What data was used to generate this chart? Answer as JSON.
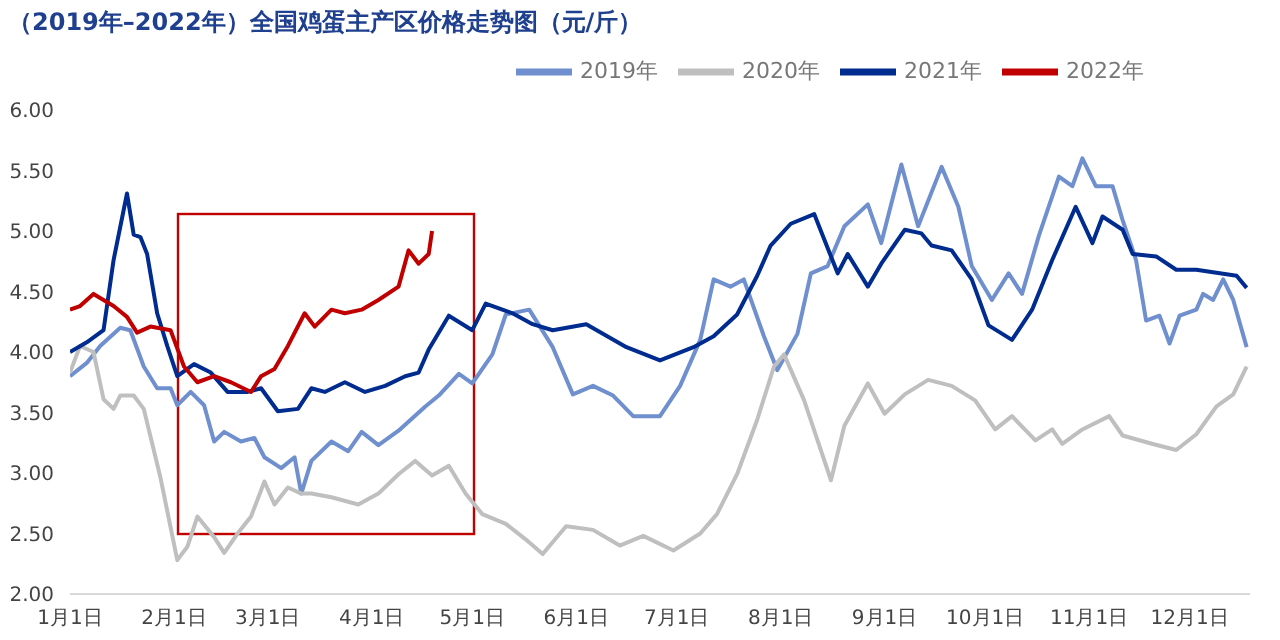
{
  "chart_data": {
    "type": "line",
    "title": "（2019年–2022年）全国鸡蛋主产区价格走势图（元/斤）",
    "xlim": [
      "--01-01",
      "--12-19"
    ],
    "xticks": [
      {
        "value": "--01-01",
        "label": "1月1日"
      },
      {
        "value": "--02-01",
        "label": "2月1日"
      },
      {
        "value": "--03-01",
        "label": "3月1日"
      },
      {
        "value": "--04-01",
        "label": "4月1日"
      },
      {
        "value": "--05-01",
        "label": "5月1日"
      },
      {
        "value": "--06-01",
        "label": "6月1日"
      },
      {
        "value": "--07-01",
        "label": "7月1日"
      },
      {
        "value": "--08-01",
        "label": "8月1日"
      },
      {
        "value": "--09-01",
        "label": "9月1日"
      },
      {
        "value": "--10-01",
        "label": "10月1日"
      },
      {
        "value": "--11-01",
        "label": "11月1日"
      },
      {
        "value": "--12-01",
        "label": "12月1日"
      }
    ],
    "ylim": [
      2,
      6
    ],
    "yticks": [
      {
        "value": 2,
        "label": "2.00"
      },
      {
        "value": 2.5,
        "label": "2.50"
      },
      {
        "value": 3,
        "label": "3.00"
      },
      {
        "value": 3.5,
        "label": "3.50"
      },
      {
        "value": 4,
        "label": "4.00"
      },
      {
        "value": 4.5,
        "label": "4.50"
      },
      {
        "value": 5,
        "label": "5.00"
      },
      {
        "value": 5.5,
        "label": "5.50"
      },
      {
        "value": 6,
        "label": "6.00"
      }
    ],
    "grid": false,
    "legend": "top",
    "marker": "none",
    "series": [
      {
        "name": "2019年",
        "color": "#6f8fcf",
        "x": [
          "--01-01",
          "--01-06",
          "--01-10",
          "--01-16",
          "--01-19",
          "--01-23",
          "--01-27",
          "--01-31",
          "--02-02",
          "--02-06",
          "--02-10",
          "--02-13",
          "--02-16",
          "--02-21",
          "--02-25",
          "--02-28",
          "--03-05",
          "--03-09",
          "--03-11",
          "--03-14",
          "--03-20",
          "--03-25",
          "--03-29",
          "--04-03",
          "--04-09",
          "--04-17",
          "--04-21",
          "--04-27",
          "--05-01",
          "--05-07",
          "--05-11",
          "--05-18",
          "--05-25",
          "--05-31",
          "--06-06",
          "--06-12",
          "--06-18",
          "--06-26",
          "--07-02",
          "--07-08",
          "--07-12",
          "--07-17",
          "--07-21",
          "--07-27",
          "--07-31",
          "--08-06",
          "--08-10",
          "--08-15",
          "--08-20",
          "--08-27",
          "--08-31",
          "--09-06",
          "--09-11",
          "--09-18",
          "--09-23",
          "--09-27",
          "--10-03",
          "--10-08",
          "--10-12",
          "--10-17",
          "--10-23",
          "--10-27",
          "--10-30",
          "--11-03",
          "--11-08",
          "--11-11",
          "--11-15",
          "--11-18",
          "--11-22",
          "--11-25",
          "--11-28",
          "--12-03",
          "--12-05",
          "--12-08",
          "--12-11",
          "--12-14",
          "--12-18"
        ],
        "values": [
          3.8,
          3.91,
          4.05,
          4.2,
          4.18,
          3.88,
          3.7,
          3.7,
          3.56,
          3.67,
          3.56,
          3.26,
          3.34,
          3.26,
          3.29,
          3.13,
          3.04,
          3.13,
          2.83,
          3.1,
          3.26,
          3.18,
          3.34,
          3.23,
          3.35,
          3.55,
          3.64,
          3.82,
          3.74,
          3.98,
          4.31,
          4.35,
          4.04,
          3.65,
          3.72,
          3.64,
          3.47,
          3.47,
          3.72,
          4.1,
          4.6,
          4.54,
          4.6,
          4.13,
          3.85,
          4.15,
          4.65,
          4.71,
          5.04,
          5.22,
          4.9,
          5.55,
          5.04,
          5.53,
          5.2,
          4.71,
          4.43,
          4.65,
          4.48,
          4.96,
          5.45,
          5.37,
          5.6,
          5.37,
          5.37,
          5.09,
          4.76,
          4.26,
          4.3,
          4.07,
          4.3,
          4.35,
          4.48,
          4.43,
          4.6,
          4.43,
          4.04
        ]
      },
      {
        "name": "2020年",
        "color": "#bfbfbf",
        "x": [
          "--01-01",
          "--01-04",
          "--01-08",
          "--01-11",
          "--01-14",
          "--01-16",
          "--01-20",
          "--01-23",
          "--01-28",
          "--02-02",
          "--02-05",
          "--02-08",
          "--02-13",
          "--02-16",
          "--02-20",
          "--02-24",
          "--02-28",
          "--03-03",
          "--03-07",
          "--03-11",
          "--03-14",
          "--03-20",
          "--03-28",
          "--04-03",
          "--04-09",
          "--04-14",
          "--04-19",
          "--04-24",
          "--04-29",
          "--05-04",
          "--05-11",
          "--05-17",
          "--05-22",
          "--05-29",
          "--06-06",
          "--06-14",
          "--06-21",
          "--06-30",
          "--07-08",
          "--07-13",
          "--07-19",
          "--07-25",
          "--07-30",
          "--08-02",
          "--08-08",
          "--08-12",
          "--08-16",
          "--08-20",
          "--08-27",
          "--09-01",
          "--09-07",
          "--09-14",
          "--09-21",
          "--09-28",
          "--10-04",
          "--10-09",
          "--10-16",
          "--10-21",
          "--10-24",
          "--10-30",
          "--11-07",
          "--11-11",
          "--11-20",
          "--11-27",
          "--12-03",
          "--12-09",
          "--12-14",
          "--12-18"
        ],
        "values": [
          3.83,
          4.05,
          4.0,
          3.61,
          3.53,
          3.64,
          3.64,
          3.53,
          2.96,
          2.28,
          2.39,
          2.64,
          2.47,
          2.34,
          2.5,
          2.64,
          2.93,
          2.74,
          2.88,
          2.83,
          2.83,
          2.8,
          2.74,
          2.83,
          2.99,
          3.1,
          2.98,
          3.06,
          2.83,
          2.66,
          2.58,
          2.45,
          2.33,
          2.56,
          2.53,
          2.4,
          2.48,
          2.36,
          2.5,
          2.66,
          2.99,
          3.44,
          3.88,
          3.98,
          3.6,
          3.27,
          2.94,
          3.39,
          3.74,
          3.49,
          3.65,
          3.77,
          3.72,
          3.6,
          3.36,
          3.47,
          3.27,
          3.36,
          3.24,
          3.36,
          3.47,
          3.31,
          3.24,
          3.19,
          3.32,
          3.55,
          3.65,
          3.88
        ]
      },
      {
        "name": "2021年",
        "color": "#002b8f",
        "x": [
          "--01-01",
          "--01-06",
          "--01-11",
          "--01-14",
          "--01-18",
          "--01-20",
          "--01-22",
          "--01-24",
          "--01-27",
          "--01-30",
          "--02-02",
          "--02-07",
          "--02-12",
          "--02-17",
          "--02-23",
          "--02-27",
          "--03-04",
          "--03-10",
          "--03-14",
          "--03-18",
          "--03-24",
          "--03-30",
          "--04-05",
          "--04-11",
          "--04-15",
          "--04-18",
          "--04-24",
          "--05-01",
          "--05-05",
          "--05-13",
          "--05-19",
          "--05-25",
          "--06-04",
          "--06-16",
          "--06-26",
          "--07-06",
          "--07-12",
          "--07-19",
          "--07-25",
          "--07-29",
          "--08-04",
          "--08-11",
          "--08-18",
          "--08-21",
          "--08-27",
          "--08-31",
          "--09-07",
          "--09-12",
          "--09-15",
          "--09-21",
          "--09-27",
          "--10-02",
          "--10-09",
          "--10-15",
          "--10-21",
          "--10-28",
          "--11-02",
          "--11-05",
          "--11-11",
          "--11-14",
          "--11-21",
          "--11-27",
          "--12-03",
          "--12-10",
          "--12-15",
          "--12-18"
        ],
        "values": [
          4.0,
          4.08,
          4.18,
          4.76,
          5.31,
          4.97,
          4.95,
          4.81,
          4.32,
          4.05,
          3.8,
          3.9,
          3.83,
          3.67,
          3.67,
          3.7,
          3.51,
          3.53,
          3.7,
          3.67,
          3.75,
          3.67,
          3.72,
          3.8,
          3.83,
          4.02,
          4.3,
          4.18,
          4.4,
          4.32,
          4.23,
          4.18,
          4.23,
          4.04,
          3.93,
          4.04,
          4.13,
          4.31,
          4.63,
          4.88,
          5.06,
          5.14,
          4.65,
          4.81,
          4.54,
          4.73,
          5.01,
          4.98,
          4.88,
          4.84,
          4.6,
          4.22,
          4.1,
          4.35,
          4.76,
          5.2,
          4.9,
          5.12,
          5.01,
          4.81,
          4.79,
          4.68,
          4.68,
          4.65,
          4.63,
          4.53
        ]
      },
      {
        "name": "2022年",
        "color": "#c00000",
        "x": [
          "--01-01",
          "--01-04",
          "--01-08",
          "--01-14",
          "--01-18",
          "--01-21",
          "--01-25",
          "--01-31",
          "--02-04",
          "--02-08",
          "--02-13",
          "--02-18",
          "--02-24",
          "--02-27",
          "--03-03",
          "--03-07",
          "--03-12",
          "--03-15",
          "--03-20",
          "--03-24",
          "--03-29",
          "--04-03",
          "--04-09",
          "--04-12",
          "--04-15",
          "--04-18",
          "--04-19"
        ],
        "values": [
          4.35,
          4.38,
          4.48,
          4.38,
          4.29,
          4.16,
          4.21,
          4.18,
          3.88,
          3.75,
          3.8,
          3.75,
          3.67,
          3.8,
          3.86,
          4.05,
          4.32,
          4.21,
          4.35,
          4.32,
          4.35,
          4.43,
          4.54,
          4.84,
          4.73,
          4.81,
          5.0
        ]
      }
    ]
  }
}
